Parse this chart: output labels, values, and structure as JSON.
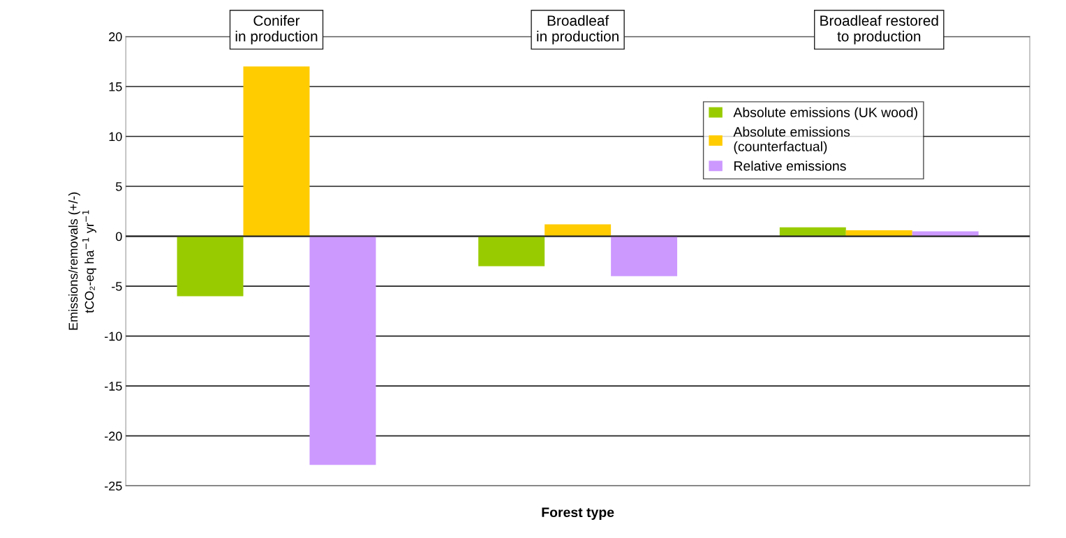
{
  "chart_data": {
    "type": "bar",
    "categories": [
      "Conifer\nin production",
      "Broadleaf\nin production",
      "Broadleaf restored\nto production"
    ],
    "series": [
      {
        "name": "Absolute emissions (UK wood)",
        "color": "#99cc00",
        "values": [
          -6,
          -3,
          0.9
        ]
      },
      {
        "name": "Absolute emissions\n(counterfactual)",
        "color": "#ffcc00",
        "values": [
          17,
          1.2,
          0.6
        ]
      },
      {
        "name": "Relative emissions",
        "color": "#cc99ff",
        "values": [
          -22.9,
          -4,
          0.5
        ]
      }
    ],
    "xlabel": "Forest type",
    "ylabel": "Emissions/removals (+/-)\ntCO₂-eq ha$^{−1}$ yr$^{−1}$",
    "ylim": [
      -25,
      20
    ],
    "yticks": [
      -25,
      -20,
      -15,
      -10,
      -5,
      0,
      5,
      10,
      15,
      20
    ],
    "grid": "y",
    "legend": "top right"
  }
}
